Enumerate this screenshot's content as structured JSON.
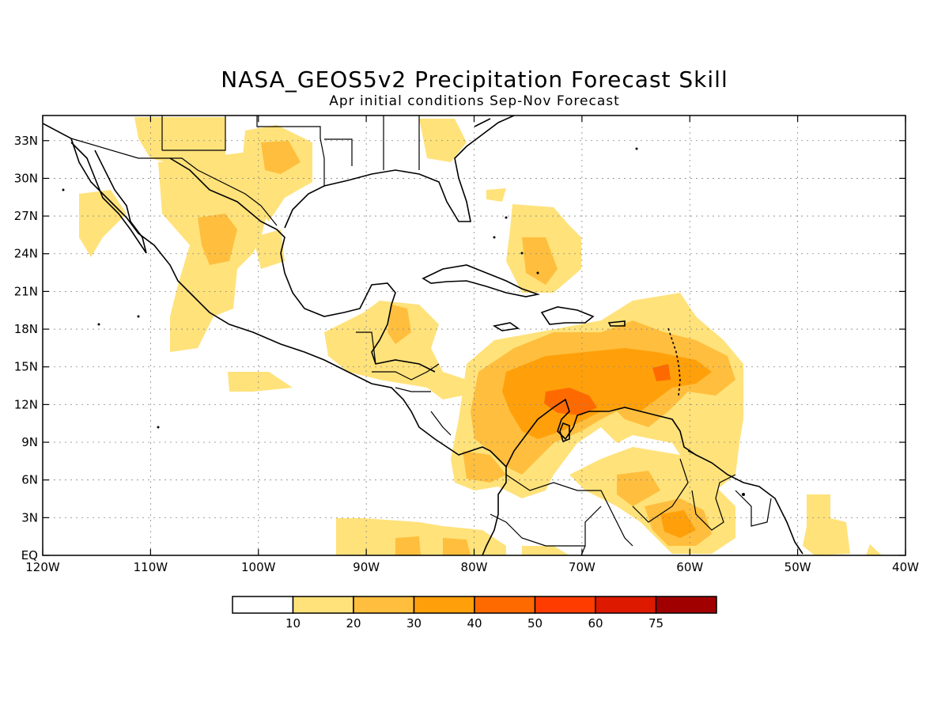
{
  "title": "NASA_GEOS5v2 Precipitation Forecast Skill",
  "subtitle": "Apr initial conditions  Sep-Nov Forecast",
  "map": {
    "lon_range": [
      -120,
      -40
    ],
    "lat_range": [
      0,
      35
    ],
    "lon_ticks": [
      {
        "value": -120,
        "label": "120W"
      },
      {
        "value": -110,
        "label": "110W"
      },
      {
        "value": -100,
        "label": "100W"
      },
      {
        "value": -90,
        "label": "90W"
      },
      {
        "value": -80,
        "label": "80W"
      },
      {
        "value": -70,
        "label": "70W"
      },
      {
        "value": -60,
        "label": "60W"
      },
      {
        "value": -50,
        "label": "50W"
      },
      {
        "value": -40,
        "label": "40W"
      }
    ],
    "lat_ticks": [
      {
        "value": 0,
        "label": "EQ"
      },
      {
        "value": 3,
        "label": "3N"
      },
      {
        "value": 6,
        "label": "6N"
      },
      {
        "value": 9,
        "label": "9N"
      },
      {
        "value": 12,
        "label": "12N"
      },
      {
        "value": 15,
        "label": "15N"
      },
      {
        "value": 18,
        "label": "18N"
      },
      {
        "value": 21,
        "label": "21N"
      },
      {
        "value": 24,
        "label": "24N"
      },
      {
        "value": 27,
        "label": "27N"
      },
      {
        "value": 30,
        "label": "30N"
      },
      {
        "value": 33,
        "label": "33N"
      }
    ],
    "grid": true
  },
  "colorbar": {
    "boundaries": [
      "10",
      "20",
      "30",
      "40",
      "50",
      "60",
      "75"
    ],
    "colors": [
      "#ffffff",
      "#ffe27a",
      "#ffbe3d",
      "#ffa00a",
      "#ff6a00",
      "#ff3c00",
      "#dd1900",
      "#a00000"
    ]
  },
  "chart_data": {
    "type": "heatmap",
    "title": "NASA_GEOS5v2 Precipitation Forecast Skill",
    "subtitle": "Apr initial conditions  Sep-Nov Forecast",
    "levels": [
      10,
      20,
      30,
      40,
      50,
      60,
      75
    ],
    "regions": [
      {
        "lon": [
          -72,
          -62
        ],
        "lat": [
          9,
          16
        ],
        "level": 40
      },
      {
        "lon": [
          -73,
          -68
        ],
        "lat": [
          10.5,
          13
        ],
        "level": 50
      },
      {
        "lon": [
          -64,
          -60
        ],
        "lat": [
          13,
          15
        ],
        "level": 50
      },
      {
        "lon": [
          -78,
          -56
        ],
        "lat": [
          8,
          18
        ],
        "level": 20
      },
      {
        "lon": [
          -75,
          -60
        ],
        "lat": [
          10,
          16
        ],
        "level": 30
      },
      {
        "lon": [
          -66,
          -58
        ],
        "lat": [
          1.5,
          5
        ],
        "level": 30
      },
      {
        "lon": [
          -93,
          -86
        ],
        "lat": [
          17,
          24
        ],
        "level": 10
      },
      {
        "lon": [
          -77,
          -72
        ],
        "lat": [
          21,
          27
        ],
        "level": 10
      },
      {
        "lon": [
          -107,
          -102
        ],
        "lat": [
          22,
          27
        ],
        "level": 20
      },
      {
        "lon": [
          -100,
          -94
        ],
        "lat": [
          28,
          33
        ],
        "level": 20
      },
      {
        "lon": [
          -47,
          -44
        ],
        "lat": [
          0,
          5
        ],
        "level": 10
      }
    ]
  }
}
